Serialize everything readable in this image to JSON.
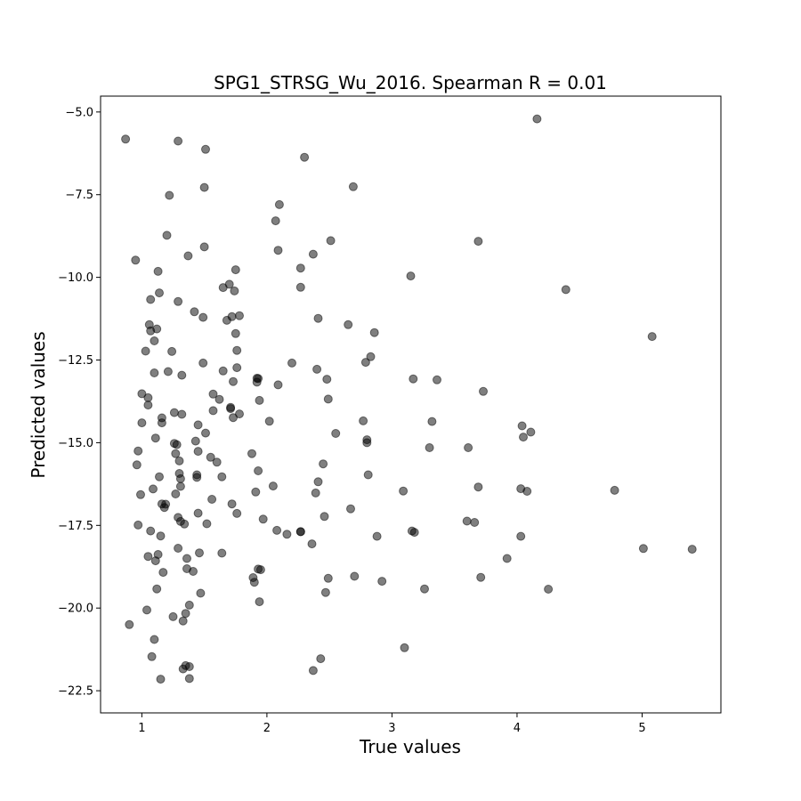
{
  "chart_data": {
    "type": "scatter",
    "title": "SPG1_STRSG_Wu_2016. Spearman R = 0.01",
    "xlabel": "True values",
    "ylabel": "Predicted values",
    "xlim": [
      0.67,
      5.63
    ],
    "ylim": [
      -23.17,
      -4.52
    ],
    "xticks": [
      1,
      2,
      3,
      4,
      5
    ],
    "xtick_labels": [
      "1",
      "2",
      "3",
      "4",
      "5"
    ],
    "yticks": [
      -5.0,
      -7.5,
      -10.0,
      -12.5,
      -15.0,
      -17.5,
      -20.0,
      -22.5
    ],
    "ytick_labels": [
      "−5.0",
      "−7.5",
      "−10.0",
      "−12.5",
      "−15.0",
      "−17.5",
      "−20.0",
      "−22.5"
    ],
    "grid": false,
    "legend": "none",
    "marker_color": "#000000",
    "marker_opacity": 0.5,
    "points": [
      [
        0.87,
        -5.82
      ],
      [
        0.9,
        -20.5
      ],
      [
        0.95,
        -9.48
      ],
      [
        0.96,
        -15.67
      ],
      [
        0.97,
        -15.25
      ],
      [
        0.97,
        -17.49
      ],
      [
        0.99,
        -16.57
      ],
      [
        1.0,
        -13.52
      ],
      [
        1.0,
        -14.4
      ],
      [
        1.03,
        -12.23
      ],
      [
        1.04,
        -20.06
      ],
      [
        1.05,
        -18.44
      ],
      [
        1.05,
        -13.86
      ],
      [
        1.05,
        -13.64
      ],
      [
        1.06,
        -11.43
      ],
      [
        1.07,
        -11.62
      ],
      [
        1.07,
        -10.67
      ],
      [
        1.07,
        -17.67
      ],
      [
        1.08,
        -21.47
      ],
      [
        1.09,
        -16.4
      ],
      [
        1.1,
        -11.92
      ],
      [
        1.1,
        -12.89
      ],
      [
        1.1,
        -20.95
      ],
      [
        1.11,
        -14.86
      ],
      [
        1.11,
        -18.57
      ],
      [
        1.12,
        -19.42
      ],
      [
        1.12,
        -11.56
      ],
      [
        1.13,
        -9.82
      ],
      [
        1.13,
        -18.38
      ],
      [
        1.14,
        -10.47
      ],
      [
        1.14,
        -16.03
      ],
      [
        1.15,
        -22.15
      ],
      [
        1.15,
        -17.82
      ],
      [
        1.16,
        -16.85
      ],
      [
        1.16,
        -14.25
      ],
      [
        1.16,
        -14.4
      ],
      [
        1.17,
        -18.92
      ],
      [
        1.18,
        -16.96
      ],
      [
        1.19,
        -16.86
      ],
      [
        1.2,
        -8.73
      ],
      [
        1.21,
        -12.85
      ],
      [
        1.22,
        -7.52
      ],
      [
        1.24,
        -12.24
      ],
      [
        1.25,
        -20.26
      ],
      [
        1.26,
        -14.09
      ],
      [
        1.26,
        -15.02
      ],
      [
        1.27,
        -15.33
      ],
      [
        1.27,
        -16.55
      ],
      [
        1.28,
        -15.06
      ],
      [
        1.29,
        -5.88
      ],
      [
        1.29,
        -10.73
      ],
      [
        1.29,
        -18.19
      ],
      [
        1.29,
        -17.26
      ],
      [
        1.3,
        -15.55
      ],
      [
        1.3,
        -15.93
      ],
      [
        1.31,
        -16.32
      ],
      [
        1.31,
        -16.09
      ],
      [
        1.31,
        -17.38
      ],
      [
        1.32,
        -12.96
      ],
      [
        1.32,
        -14.14
      ],
      [
        1.33,
        -21.84
      ],
      [
        1.33,
        -20.39
      ],
      [
        1.34,
        -17.46
      ],
      [
        1.35,
        -21.74
      ],
      [
        1.35,
        -20.16
      ],
      [
        1.36,
        -18.5
      ],
      [
        1.36,
        -18.81
      ],
      [
        1.37,
        -9.35
      ],
      [
        1.38,
        -19.91
      ],
      [
        1.38,
        -22.13
      ],
      [
        1.38,
        -21.77
      ],
      [
        1.41,
        -18.89
      ],
      [
        1.42,
        -11.04
      ],
      [
        1.43,
        -14.95
      ],
      [
        1.44,
        -16.05
      ],
      [
        1.44,
        -15.97
      ],
      [
        1.45,
        -15.26
      ],
      [
        1.45,
        -17.13
      ],
      [
        1.45,
        -14.46
      ],
      [
        1.46,
        -18.33
      ],
      [
        1.47,
        -19.55
      ],
      [
        1.49,
        -11.21
      ],
      [
        1.49,
        -12.59
      ],
      [
        1.5,
        -7.28
      ],
      [
        1.5,
        -9.08
      ],
      [
        1.51,
        -6.13
      ],
      [
        1.51,
        -14.71
      ],
      [
        1.52,
        -17.45
      ],
      [
        1.55,
        -15.44
      ],
      [
        1.56,
        -16.71
      ],
      [
        1.57,
        -13.53
      ],
      [
        1.57,
        -14.03
      ],
      [
        1.6,
        -15.59
      ],
      [
        1.62,
        -13.69
      ],
      [
        1.64,
        -18.34
      ],
      [
        1.64,
        -16.03
      ],
      [
        1.65,
        -12.83
      ],
      [
        1.65,
        -10.31
      ],
      [
        1.68,
        -11.3
      ],
      [
        1.7,
        -10.21
      ],
      [
        1.71,
        -13.93
      ],
      [
        1.71,
        -13.97
      ],
      [
        1.72,
        -16.85
      ],
      [
        1.72,
        -11.19
      ],
      [
        1.73,
        -13.15
      ],
      [
        1.73,
        -14.24
      ],
      [
        1.74,
        -10.41
      ],
      [
        1.75,
        -9.77
      ],
      [
        1.75,
        -11.7
      ],
      [
        1.76,
        -17.14
      ],
      [
        1.76,
        -12.21
      ],
      [
        1.76,
        -12.73
      ],
      [
        1.78,
        -11.16
      ],
      [
        1.78,
        -14.13
      ],
      [
        1.88,
        -15.33
      ],
      [
        1.89,
        -19.08
      ],
      [
        1.9,
        -19.22
      ],
      [
        1.91,
        -16.49
      ],
      [
        1.92,
        -13.05
      ],
      [
        1.92,
        -13.17
      ],
      [
        1.93,
        -15.85
      ],
      [
        1.93,
        -13.06
      ],
      [
        1.93,
        -18.82
      ],
      [
        1.94,
        -13.72
      ],
      [
        1.94,
        -19.81
      ],
      [
        1.95,
        -18.84
      ],
      [
        1.97,
        -17.31
      ],
      [
        2.02,
        -14.35
      ],
      [
        2.05,
        -16.31
      ],
      [
        2.07,
        -8.29
      ],
      [
        2.08,
        -17.65
      ],
      [
        2.09,
        -13.25
      ],
      [
        2.09,
        -9.18
      ],
      [
        2.1,
        -7.8
      ],
      [
        2.16,
        -17.77
      ],
      [
        2.2,
        -12.59
      ],
      [
        2.27,
        -17.69
      ],
      [
        2.27,
        -17.69
      ],
      [
        2.27,
        -9.72
      ],
      [
        2.27,
        -10.3
      ],
      [
        2.3,
        -6.37
      ],
      [
        2.36,
        -18.06
      ],
      [
        2.37,
        -21.89
      ],
      [
        2.37,
        -9.3
      ],
      [
        2.39,
        -16.52
      ],
      [
        2.4,
        -12.78
      ],
      [
        2.41,
        -16.18
      ],
      [
        2.41,
        -11.24
      ],
      [
        2.43,
        -21.53
      ],
      [
        2.45,
        -15.64
      ],
      [
        2.46,
        -17.23
      ],
      [
        2.47,
        -19.53
      ],
      [
        2.48,
        -13.08
      ],
      [
        2.49,
        -13.68
      ],
      [
        2.49,
        -19.1
      ],
      [
        2.51,
        -8.89
      ],
      [
        2.55,
        -14.72
      ],
      [
        2.65,
        -11.43
      ],
      [
        2.67,
        -17.0
      ],
      [
        2.69,
        -7.26
      ],
      [
        2.7,
        -19.04
      ],
      [
        2.77,
        -14.34
      ],
      [
        2.79,
        -12.57
      ],
      [
        2.8,
        -14.91
      ],
      [
        2.8,
        -15.0
      ],
      [
        2.81,
        -15.97
      ],
      [
        2.83,
        -12.4
      ],
      [
        2.86,
        -11.67
      ],
      [
        2.88,
        -17.83
      ],
      [
        2.92,
        -19.19
      ],
      [
        3.09,
        -16.46
      ],
      [
        3.1,
        -21.2
      ],
      [
        3.15,
        -9.96
      ],
      [
        3.16,
        -17.67
      ],
      [
        3.17,
        -13.07
      ],
      [
        3.18,
        -17.71
      ],
      [
        3.26,
        -19.42
      ],
      [
        3.3,
        -15.15
      ],
      [
        3.32,
        -14.36
      ],
      [
        3.36,
        -13.1
      ],
      [
        3.6,
        -17.37
      ],
      [
        3.61,
        -15.15
      ],
      [
        3.66,
        -17.41
      ],
      [
        3.69,
        -8.91
      ],
      [
        3.69,
        -16.34
      ],
      [
        3.71,
        -19.07
      ],
      [
        3.73,
        -13.45
      ],
      [
        3.92,
        -18.5
      ],
      [
        4.03,
        -16.39
      ],
      [
        4.03,
        -17.83
      ],
      [
        4.04,
        -14.49
      ],
      [
        4.05,
        -14.83
      ],
      [
        4.08,
        -16.47
      ],
      [
        4.11,
        -14.68
      ],
      [
        4.16,
        -5.21
      ],
      [
        4.25,
        -19.43
      ],
      [
        4.39,
        -10.37
      ],
      [
        4.78,
        -16.44
      ],
      [
        5.01,
        -18.2
      ],
      [
        5.08,
        -11.79
      ],
      [
        5.4,
        -18.22
      ]
    ]
  }
}
